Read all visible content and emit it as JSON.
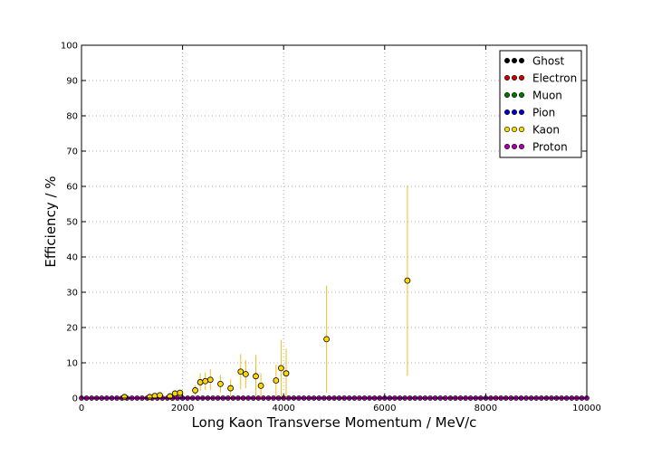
{
  "chart_data": {
    "type": "scatter",
    "title": "",
    "xlabel": "Long Kaon Transverse Momentum / MeV/c",
    "ylabel": "Efficiency / %",
    "xlim": [
      0,
      10000
    ],
    "ylim": [
      0,
      100
    ],
    "xticks": [
      0,
      2000,
      4000,
      6000,
      8000,
      10000
    ],
    "yticks": [
      0,
      10,
      20,
      30,
      40,
      50,
      60,
      70,
      80,
      90,
      100
    ],
    "grid": true,
    "legend_position": "top-right",
    "zero_bins": {
      "start": 0,
      "end": 10000,
      "step": 100
    },
    "series": [
      {
        "name": "Ghost",
        "color": "#000000",
        "points": []
      },
      {
        "name": "Electron",
        "color": "#cc0000",
        "points": []
      },
      {
        "name": "Muon",
        "color": "#007700",
        "points": []
      },
      {
        "name": "Pion",
        "color": "#0000cc",
        "points": []
      },
      {
        "name": "Kaon",
        "color": "#ffd700",
        "errcolor": "#f0c020",
        "points": [
          {
            "x": 850,
            "y": 0.3,
            "err": 0.3
          },
          {
            "x": 1350,
            "y": 0.3,
            "err": 0.3
          },
          {
            "x": 1450,
            "y": 0.6,
            "err": 0.4
          },
          {
            "x": 1550,
            "y": 0.8,
            "err": 0.5
          },
          {
            "x": 1750,
            "y": 0.5,
            "err": 0.5
          },
          {
            "x": 1850,
            "y": 1.3,
            "err": 0.8
          },
          {
            "x": 1950,
            "y": 1.5,
            "err": 1.0
          },
          {
            "x": 2250,
            "y": 2.2,
            "err": 1.5
          },
          {
            "x": 2350,
            "y": 4.5,
            "err": 2.5
          },
          {
            "x": 2450,
            "y": 4.8,
            "err": 2.5
          },
          {
            "x": 2550,
            "y": 5.2,
            "err": 3.0
          },
          {
            "x": 2750,
            "y": 4.0,
            "err": 2.5
          },
          {
            "x": 2950,
            "y": 2.8,
            "err": 2.5
          },
          {
            "x": 3150,
            "y": 7.5,
            "err": 5.0
          },
          {
            "x": 3250,
            "y": 6.8,
            "err": 4.0
          },
          {
            "x": 3450,
            "y": 6.2,
            "err": 6.0
          },
          {
            "x": 3550,
            "y": 3.5,
            "err": 3.5
          },
          {
            "x": 3850,
            "y": 5.0,
            "err": 4.5
          },
          {
            "x": 3950,
            "y": 8.5,
            "err": 8.0
          },
          {
            "x": 4050,
            "y": 7.0,
            "err": 7.0
          },
          {
            "x": 4850,
            "y": 16.7,
            "err": 15.2
          },
          {
            "x": 6450,
            "y": 33.3,
            "err": 27.0
          }
        ]
      },
      {
        "name": "Proton",
        "color": "#aa00aa",
        "points": []
      }
    ]
  }
}
